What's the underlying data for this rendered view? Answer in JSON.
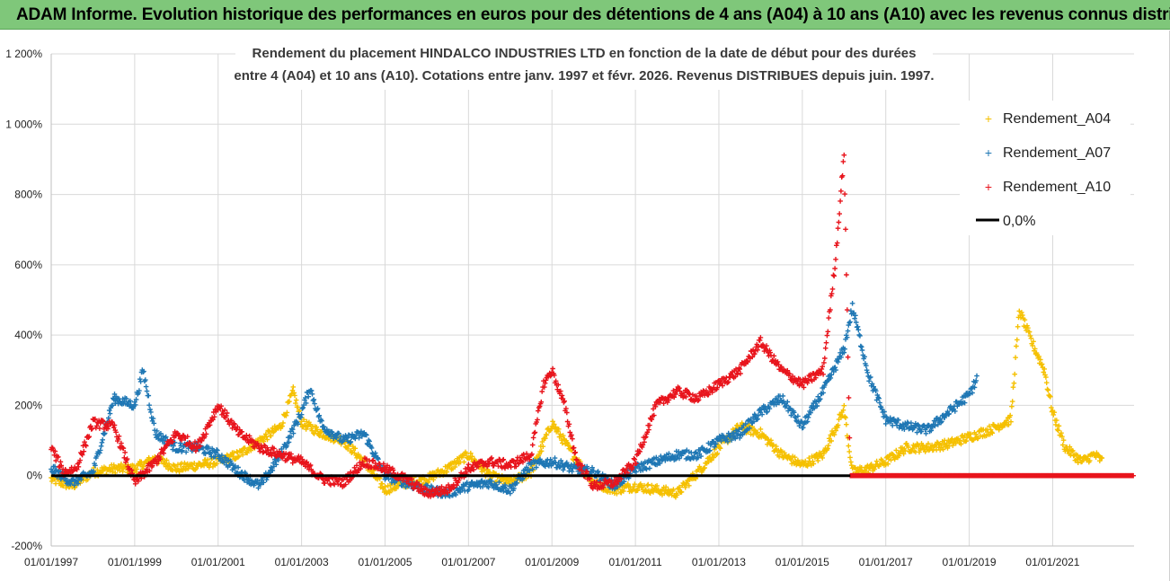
{
  "banner": {
    "title": "ADAM Informe. Evolution historique des performances en euros pour des détentions de 4 ans (A04) à 10 ans (A10) avec les revenus connus distribués"
  },
  "chart_data": {
    "type": "scatter",
    "title_line1": "Rendement du placement HINDALCO INDUSTRIES LTD en fonction de la date de début pour des durées",
    "title_line2": "entre 4 (A04) et 10 ans (A10). Cotations entre janv. 1997 et févr. 2026. Revenus DISTRIBUES depuis juin. 1997.",
    "xlabel": "",
    "ylabel": "",
    "x_ticks": [
      "01/01/1997",
      "01/01/1999",
      "01/01/2001",
      "01/01/2003",
      "01/01/2005",
      "01/01/2007",
      "01/01/2009",
      "01/01/2011",
      "01/01/2013",
      "01/01/2015",
      "01/01/2017",
      "01/01/2019",
      "01/01/2021"
    ],
    "x_range": [
      1997.0,
      2022.95
    ],
    "y_ticks": [
      "-200%",
      "0%",
      "200%",
      "400%",
      "600%",
      "800%",
      "1 000%",
      "1 200%"
    ],
    "ylim": [
      -200,
      1200
    ],
    "legend": [
      "Rendement_A04",
      "Rendement_A07",
      "Rendement_A10",
      "0,0%"
    ],
    "colors": {
      "A04": "#f5c000",
      "A07": "#1f77b4",
      "A10": "#e8141c",
      "zero": "#000000",
      "grid": "#d9d9d9"
    },
    "series": [
      {
        "name": "Rendement_A04",
        "color": "#f5c000",
        "points": [
          [
            1997.0,
            -10
          ],
          [
            1997.5,
            -30
          ],
          [
            1998.0,
            10
          ],
          [
            1998.5,
            20
          ],
          [
            1999.0,
            20
          ],
          [
            1999.5,
            50
          ],
          [
            2000.0,
            20
          ],
          [
            2000.5,
            30
          ],
          [
            2001.0,
            40
          ],
          [
            2001.5,
            60
          ],
          [
            2002.0,
            100
          ],
          [
            2002.5,
            140
          ],
          [
            2002.8,
            240
          ],
          [
            2003.0,
            150
          ],
          [
            2003.5,
            120
          ],
          [
            2004.0,
            100
          ],
          [
            2004.5,
            40
          ],
          [
            2005.0,
            -40
          ],
          [
            2005.5,
            -20
          ],
          [
            2006.0,
            -10
          ],
          [
            2006.5,
            20
          ],
          [
            2007.0,
            60
          ],
          [
            2007.5,
            0
          ],
          [
            2008.0,
            -20
          ],
          [
            2008.5,
            10
          ],
          [
            2009.0,
            150
          ],
          [
            2009.5,
            60
          ],
          [
            2010.0,
            -20
          ],
          [
            2010.5,
            -40
          ],
          [
            2011.0,
            -30
          ],
          [
            2011.5,
            -40
          ],
          [
            2012.0,
            -50
          ],
          [
            2012.5,
            10
          ],
          [
            2013.0,
            80
          ],
          [
            2013.5,
            140
          ],
          [
            2014.0,
            120
          ],
          [
            2014.5,
            60
          ],
          [
            2015.0,
            30
          ],
          [
            2015.5,
            60
          ],
          [
            2016.0,
            190
          ],
          [
            2016.2,
            10
          ],
          [
            2016.6,
            20
          ],
          [
            2017.0,
            40
          ],
          [
            2017.5,
            80
          ],
          [
            2018.0,
            80
          ],
          [
            2018.5,
            90
          ],
          [
            2019.0,
            110
          ],
          [
            2019.5,
            130
          ],
          [
            2020.0,
            160
          ],
          [
            2020.2,
            470
          ],
          [
            2020.5,
            380
          ],
          [
            2020.8,
            300
          ],
          [
            2021.0,
            180
          ],
          [
            2021.3,
            80
          ],
          [
            2021.7,
            40
          ],
          [
            2022.0,
            60
          ],
          [
            2022.2,
            40
          ]
        ]
      },
      {
        "name": "Rendement_A07",
        "color": "#1f77b4",
        "points": [
          [
            1997.0,
            20
          ],
          [
            1997.5,
            -20
          ],
          [
            1998.0,
            10
          ],
          [
            1998.5,
            220
          ],
          [
            1999.0,
            200
          ],
          [
            1999.2,
            300
          ],
          [
            1999.5,
            120
          ],
          [
            2000.0,
            80
          ],
          [
            2000.5,
            80
          ],
          [
            2001.0,
            60
          ],
          [
            2001.5,
            10
          ],
          [
            2002.0,
            -30
          ],
          [
            2002.5,
            60
          ],
          [
            2003.0,
            180
          ],
          [
            2003.2,
            250
          ],
          [
            2003.5,
            140
          ],
          [
            2004.0,
            100
          ],
          [
            2004.5,
            120
          ],
          [
            2005.0,
            0
          ],
          [
            2005.5,
            -20
          ],
          [
            2006.0,
            -40
          ],
          [
            2006.5,
            -50
          ],
          [
            2007.0,
            -30
          ],
          [
            2007.5,
            -20
          ],
          [
            2008.0,
            -40
          ],
          [
            2008.5,
            30
          ],
          [
            2009.0,
            40
          ],
          [
            2009.5,
            20
          ],
          [
            2010.0,
            10
          ],
          [
            2010.5,
            -30
          ],
          [
            2011.0,
            20
          ],
          [
            2011.5,
            40
          ],
          [
            2012.0,
            60
          ],
          [
            2012.5,
            60
          ],
          [
            2013.0,
            100
          ],
          [
            2013.5,
            120
          ],
          [
            2014.0,
            180
          ],
          [
            2014.5,
            220
          ],
          [
            2015.0,
            140
          ],
          [
            2015.5,
            240
          ],
          [
            2016.0,
            360
          ],
          [
            2016.2,
            480
          ],
          [
            2016.6,
            280
          ],
          [
            2017.0,
            160
          ],
          [
            2017.5,
            140
          ],
          [
            2018.0,
            130
          ],
          [
            2018.5,
            180
          ],
          [
            2019.0,
            230
          ],
          [
            2019.2,
            280
          ]
        ]
      },
      {
        "name": "Rendement_A10",
        "color": "#e8141c",
        "points": [
          [
            1997.0,
            80
          ],
          [
            1997.3,
            10
          ],
          [
            1997.6,
            20
          ],
          [
            1998.0,
            150
          ],
          [
            1998.5,
            140
          ],
          [
            1999.0,
            -20
          ],
          [
            1999.5,
            40
          ],
          [
            2000.0,
            120
          ],
          [
            2000.5,
            80
          ],
          [
            2001.0,
            200
          ],
          [
            2001.5,
            120
          ],
          [
            2002.0,
            80
          ],
          [
            2002.5,
            60
          ],
          [
            2003.0,
            40
          ],
          [
            2003.5,
            -10
          ],
          [
            2004.0,
            -20
          ],
          [
            2004.5,
            40
          ],
          [
            2005.0,
            20
          ],
          [
            2005.5,
            -10
          ],
          [
            2006.0,
            -50
          ],
          [
            2006.5,
            -40
          ],
          [
            2007.0,
            20
          ],
          [
            2007.5,
            40
          ],
          [
            2008.0,
            30
          ],
          [
            2008.5,
            60
          ],
          [
            2008.8,
            260
          ],
          [
            2009.0,
            300
          ],
          [
            2009.3,
            200
          ],
          [
            2009.6,
            40
          ],
          [
            2010.0,
            -30
          ],
          [
            2010.5,
            -20
          ],
          [
            2011.0,
            40
          ],
          [
            2011.5,
            200
          ],
          [
            2012.0,
            240
          ],
          [
            2012.5,
            220
          ],
          [
            2013.0,
            260
          ],
          [
            2013.5,
            300
          ],
          [
            2014.0,
            380
          ],
          [
            2014.5,
            300
          ],
          [
            2015.0,
            260
          ],
          [
            2015.5,
            300
          ],
          [
            2015.8,
            620
          ],
          [
            2016.0,
            920
          ],
          [
            2016.15,
            0
          ],
          [
            2018.0,
            0
          ],
          [
            2020.0,
            0
          ],
          [
            2022.95,
            0
          ]
        ]
      }
    ]
  }
}
